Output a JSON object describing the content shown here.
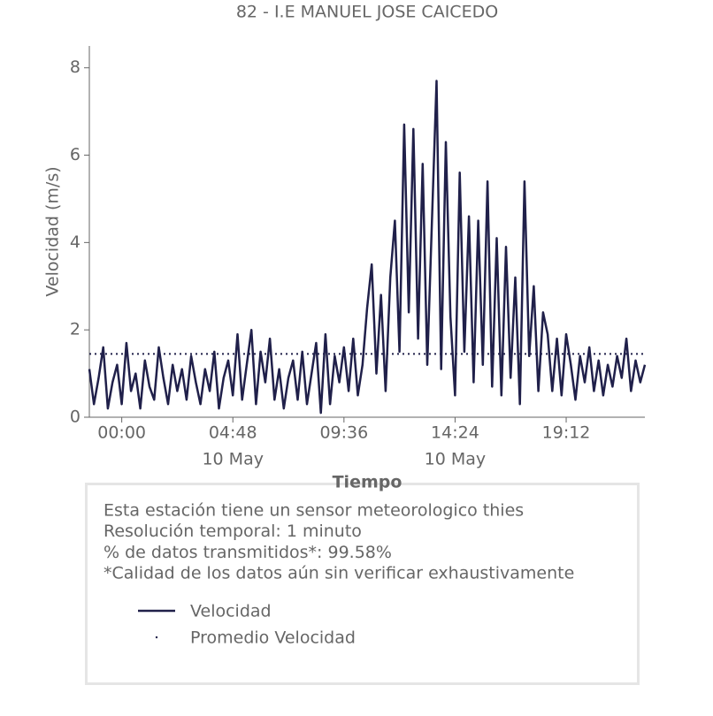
{
  "chart_data": {
    "type": "line",
    "title": "82 - I.E MANUEL JOSE CAICEDO",
    "x_label": "Tiempo",
    "y_label": "Velocidad (m/s)",
    "x": [
      -1.4,
      -1.2,
      -1.0,
      -0.8,
      -0.6,
      -0.4,
      -0.2,
      0.0,
      0.2,
      0.4,
      0.6,
      0.8,
      1.0,
      1.2,
      1.4,
      1.6,
      1.8,
      2.0,
      2.2,
      2.4,
      2.6,
      2.8,
      3.0,
      3.2,
      3.4,
      3.6,
      3.8,
      4.0,
      4.2,
      4.4,
      4.6,
      4.8,
      5.0,
      5.2,
      5.4,
      5.6,
      5.8,
      6.0,
      6.2,
      6.4,
      6.6,
      6.8,
      7.0,
      7.2,
      7.4,
      7.6,
      7.8,
      8.0,
      8.2,
      8.4,
      8.6,
      8.8,
      9.0,
      9.2,
      9.4,
      9.6,
      9.8,
      10.0,
      10.2,
      10.4,
      10.6,
      10.8,
      11.0,
      11.2,
      11.4,
      11.6,
      11.8,
      12.0,
      12.2,
      12.4,
      12.6,
      12.8,
      13.0,
      13.2,
      13.4,
      13.6,
      13.8,
      14.0,
      14.2,
      14.4,
      14.6,
      14.8,
      15.0,
      15.2,
      15.4,
      15.6,
      15.8,
      16.0,
      16.2,
      16.4,
      16.6,
      16.8,
      17.0,
      17.2,
      17.4,
      17.6,
      17.8,
      18.0,
      18.2,
      18.4,
      18.6,
      18.8,
      19.0,
      19.2,
      19.4,
      19.6,
      19.8,
      20.0,
      20.2,
      20.4,
      20.6,
      20.8,
      21.0,
      21.2,
      21.4,
      21.6,
      21.8,
      22.0,
      22.2,
      22.4,
      22.6
    ],
    "series": [
      {
        "name": "Velocidad",
        "color": "#20204a",
        "values": [
          1.1,
          0.3,
          0.9,
          1.6,
          0.2,
          0.8,
          1.2,
          0.3,
          1.7,
          0.6,
          1.0,
          0.2,
          1.3,
          0.7,
          0.4,
          1.6,
          0.9,
          0.3,
          1.2,
          0.6,
          1.1,
          0.4,
          1.4,
          0.8,
          0.3,
          1.1,
          0.6,
          1.5,
          0.2,
          0.9,
          1.3,
          0.5,
          1.9,
          0.4,
          1.2,
          2.0,
          0.3,
          1.5,
          0.8,
          1.8,
          0.4,
          1.1,
          0.2,
          0.9,
          1.3,
          0.4,
          1.5,
          0.3,
          1.0,
          1.7,
          0.1,
          1.9,
          0.3,
          1.4,
          0.8,
          1.6,
          0.6,
          1.8,
          0.5,
          1.2,
          2.5,
          3.5,
          1.0,
          2.8,
          0.6,
          3.2,
          4.5,
          1.5,
          6.7,
          2.4,
          6.6,
          1.8,
          5.8,
          1.2,
          4.5,
          7.7,
          1.1,
          6.3,
          2.3,
          0.5,
          5.6,
          1.5,
          4.6,
          0.8,
          4.5,
          1.2,
          5.4,
          0.7,
          4.1,
          0.5,
          3.9,
          0.9,
          3.2,
          0.3,
          5.4,
          1.4,
          3.0,
          0.6,
          2.4,
          1.9,
          0.6,
          1.8,
          0.5,
          1.9,
          1.2,
          0.4,
          1.4,
          0.8,
          1.6,
          0.6,
          1.3,
          0.5,
          1.2,
          0.7,
          1.4,
          0.9,
          1.8,
          0.6,
          1.3,
          0.8,
          1.2
        ]
      }
    ],
    "average": {
      "name": "Promedio Velocidad",
      "value": 1.45,
      "color": "#20204a"
    },
    "xlim": [
      -1.4,
      22.6
    ],
    "ylim": [
      0,
      8.5
    ],
    "xticks": [
      {
        "value": 0,
        "label": "00:00"
      },
      {
        "value": 4.8,
        "label": "04:48",
        "date": "10 May"
      },
      {
        "value": 9.6,
        "label": "09:36"
      },
      {
        "value": 14.4,
        "label": "14:24",
        "date": "10 May"
      },
      {
        "value": 19.2,
        "label": "19:12"
      }
    ],
    "yticks": [
      0,
      2,
      4,
      6,
      8
    ],
    "notes": [
      "Esta estación tiene un sensor meteorologico thies",
      "Resolución temporal: 1 minuto",
      "% de datos transmitidos*: 99.58%",
      "*Calidad de los datos aún sin verificar exhaustivamente"
    ]
  }
}
